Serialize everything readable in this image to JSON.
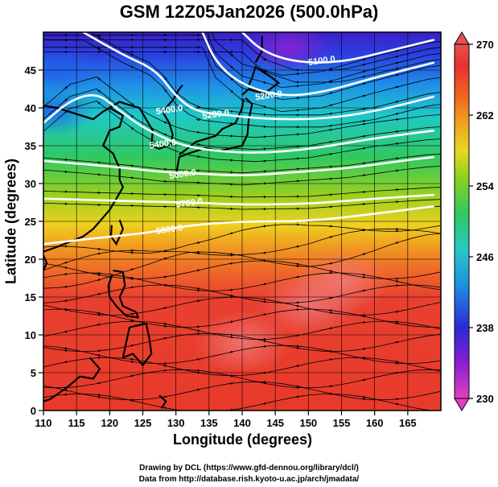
{
  "title": "GSM 12Z05Jan2026 (500.0hPa)",
  "xlabel": "Longitude (degrees)",
  "ylabel": "Latitude  (degrees)",
  "credit_line1": "Drawing by DCL (https://www.gfd-dennou.org/library/dcl/)",
  "credit_line2": "Data from http://database.rish.kyoto-u.ac.jp/arch/jmadata/",
  "chart_data": {
    "type": "heatmap",
    "title": "GSM 12Z05Jan2026 (500.0hPa)",
    "xlabel": "Longitude (degrees)",
    "ylabel": "Latitude  (degrees)",
    "xlim": [
      110,
      170
    ],
    "ylim": [
      0,
      50
    ],
    "x_ticks": [
      110,
      115,
      120,
      125,
      130,
      135,
      140,
      145,
      150,
      155,
      160,
      165
    ],
    "y_ticks": [
      0,
      5,
      10,
      15,
      20,
      25,
      30,
      35,
      40,
      45
    ],
    "grid": true,
    "shaded_variable_range": [
      230,
      270
    ],
    "colorbar_ticks": [
      230,
      238,
      246,
      254,
      262,
      270
    ],
    "colorbar_colors": [
      "#e040c0",
      "#8a1fd0",
      "#2a2ad6",
      "#1f8fe0",
      "#28c8c8",
      "#30c860",
      "#8ad020",
      "#e8d820",
      "#f0a020",
      "#f06020",
      "#e83030",
      "#e85050"
    ],
    "colorbar_placement": "right",
    "contour_labels": [
      "5100.0",
      "5200.0",
      "5200.0",
      "5400.0",
      "5400.0",
      "5600.0",
      "5700.0",
      "5800.0"
    ],
    "contours": [
      {
        "label": "5100.0",
        "points": [
          [
            140,
            50
          ],
          [
            143,
            47.5
          ],
          [
            148,
            46
          ],
          [
            155,
            46
          ],
          [
            162,
            47.5
          ],
          [
            169,
            49
          ]
        ]
      },
      {
        "label": "5200.0",
        "points": [
          [
            134,
            50
          ],
          [
            136,
            46
          ],
          [
            140,
            43
          ],
          [
            146,
            41.5
          ],
          [
            152,
            42
          ],
          [
            160,
            44
          ],
          [
            169,
            46
          ]
        ]
      },
      {
        "label": "5400.0",
        "points": [
          [
            116,
            50
          ],
          [
            122,
            47
          ],
          [
            127,
            45
          ],
          [
            130,
            41.5
          ],
          [
            133,
            39.5
          ],
          [
            138,
            39
          ],
          [
            144,
            38.5
          ],
          [
            152,
            38.5
          ],
          [
            160,
            39.5
          ],
          [
            169,
            41.5
          ]
        ]
      },
      {
        "label": "5400.0",
        "points": [
          [
            110,
            38
          ],
          [
            114,
            41
          ],
          [
            118,
            42
          ],
          [
            121,
            40
          ],
          [
            124,
            38
          ],
          [
            127,
            36.5
          ],
          [
            131,
            35
          ],
          [
            136,
            34.3
          ],
          [
            142,
            34
          ],
          [
            150,
            34.5
          ],
          [
            160,
            36
          ],
          [
            169,
            37
          ]
        ]
      },
      {
        "label": "5600.0",
        "points": [
          [
            110,
            33
          ],
          [
            117,
            32.5
          ],
          [
            123,
            32
          ],
          [
            128,
            31.5
          ],
          [
            134,
            31.3
          ],
          [
            140,
            31
          ],
          [
            148,
            31.5
          ],
          [
            156,
            32
          ],
          [
            164,
            33
          ],
          [
            169,
            33.5
          ]
        ]
      },
      {
        "label": "5700.0",
        "points": [
          [
            110,
            28
          ],
          [
            118,
            27.8
          ],
          [
            126,
            27.6
          ],
          [
            132,
            27.5
          ],
          [
            140,
            27.2
          ],
          [
            150,
            27.3
          ],
          [
            160,
            28
          ],
          [
            169,
            28.5
          ]
        ]
      },
      {
        "label": "5800.0",
        "points": [
          [
            110,
            22
          ],
          [
            118,
            22.8
          ],
          [
            126,
            23.5
          ],
          [
            132,
            24.5
          ],
          [
            140,
            25
          ],
          [
            150,
            25
          ],
          [
            160,
            26
          ],
          [
            169,
            27
          ]
        ]
      }
    ],
    "contour_label_positions": [
      {
        "text": "5100.0",
        "x": 152,
        "y": 46.3
      },
      {
        "text": "5200.0",
        "x": 144,
        "y": 41.7
      },
      {
        "text": "5200.0",
        "x": 136,
        "y": 39.2
      },
      {
        "text": "5400.0",
        "x": 129,
        "y": 39.8
      },
      {
        "text": "5400.0",
        "x": 128,
        "y": 35.3
      },
      {
        "text": "5600.0",
        "x": 131,
        "y": 31.3
      },
      {
        "text": "5700.0",
        "x": 132,
        "y": 27.5
      },
      {
        "text": "5800.0",
        "x": 129,
        "y": 24.0
      }
    ],
    "warm_cores": [
      [
        150,
        14
      ],
      [
        155,
        17
      ],
      [
        140,
        9
      ]
    ],
    "cold_cores": [
      [
        147,
        48
      ],
      [
        111,
        39.5
      ],
      [
        112,
        45
      ]
    ]
  }
}
